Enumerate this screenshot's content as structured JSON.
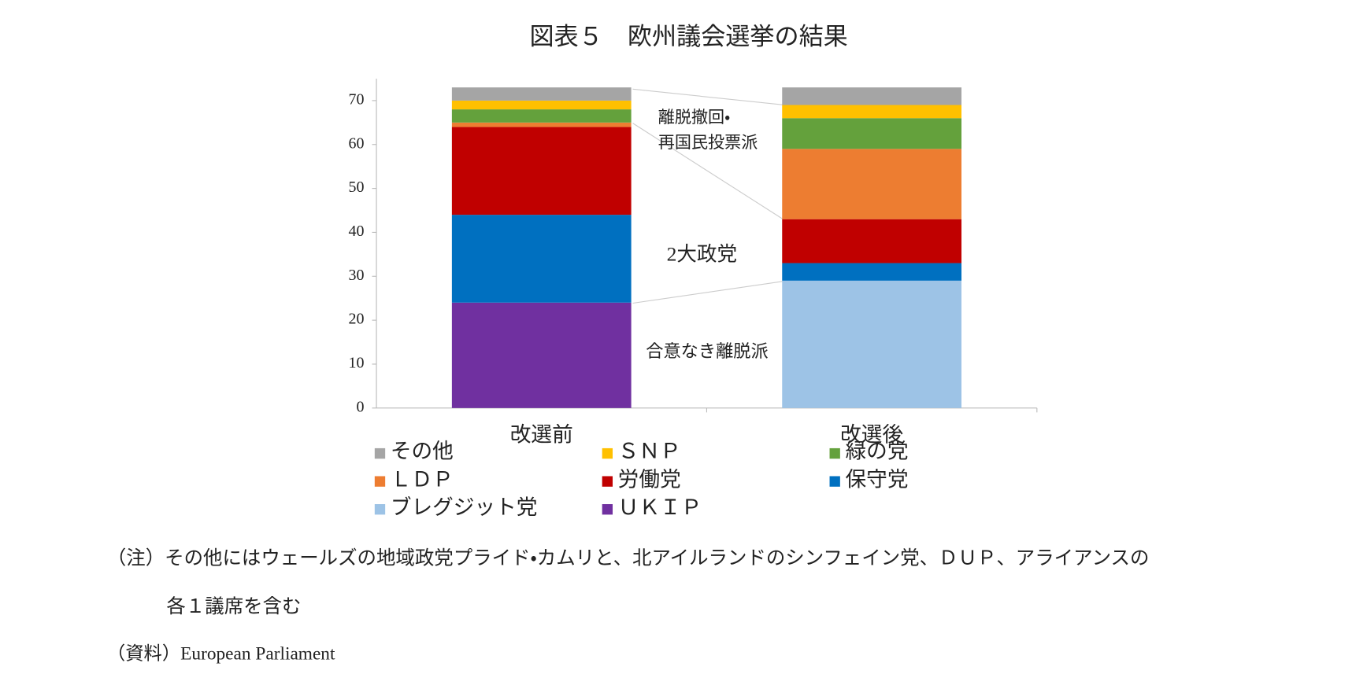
{
  "chart_data": {
    "type": "stacked-bar",
    "title": "図表５　欧州議会選挙の結果",
    "categories": [
      "改選前",
      "改選後"
    ],
    "series": [
      {
        "name": "その他",
        "color": "#a5a5a5",
        "values": [
          3,
          4
        ]
      },
      {
        "name": "ＳＮＰ",
        "color": "#ffc000",
        "values": [
          2,
          3
        ]
      },
      {
        "name": "緑の党",
        "color": "#64a13c",
        "values": [
          3,
          7
        ]
      },
      {
        "name": "ＬＤＰ",
        "color": "#ed7d31",
        "values": [
          1,
          16
        ]
      },
      {
        "name": "労働党",
        "color": "#c00000",
        "values": [
          20,
          10
        ]
      },
      {
        "name": "保守党",
        "color": "#0070c0",
        "values": [
          20,
          4
        ]
      },
      {
        "name": "ブレグジット党",
        "color": "#9dc3e6",
        "values": [
          0,
          29
        ]
      },
      {
        "name": "ＵＫＩＰ",
        "color": "#7030a0",
        "values": [
          24,
          0
        ]
      }
    ],
    "ylim": [
      0,
      75
    ],
    "yticks": [
      0,
      10,
      20,
      30,
      40,
      50,
      60,
      70
    ],
    "grid": false,
    "annotations": [
      {
        "lines": [
          "離脱撤回・",
          "再国民投票派"
        ]
      },
      "2大政党",
      "合意なき離脱派"
    ],
    "notes": [
      "（注）その他にはウェールズの地域政党プライド・カムリと、北アイルランドのシンフェイン党、ＤＵＰ、アライアンスの",
      "各１議席を含む"
    ],
    "source": "（資料）European Parliament"
  }
}
